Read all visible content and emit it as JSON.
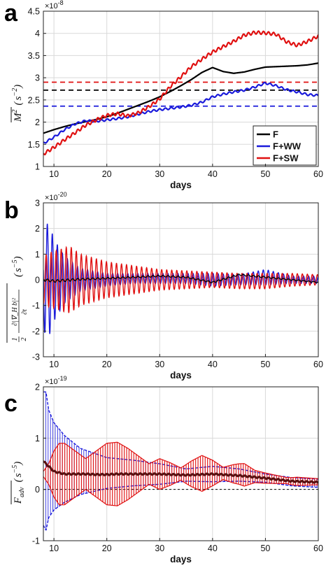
{
  "chart_data": [
    {
      "panel": "a",
      "type": "line",
      "xlabel": "days",
      "ylabel": "M² (s⁻²)",
      "ylabel_parts": {
        "var": "M",
        "sup": "2",
        "unit_open": "(",
        "unit_s": "s",
        "unit_exp": "−2",
        "unit_close": ")"
      },
      "multiplier": "×10",
      "multiplier_exp": "-8",
      "xlim": [
        8,
        60
      ],
      "ylim": [
        1,
        4.5
      ],
      "xticks": [
        "10",
        "20",
        "30",
        "40",
        "50",
        "60"
      ],
      "yticks": [
        "1",
        "1.5",
        "2",
        "2.5",
        "3",
        "3.5",
        "4",
        "4.5"
      ],
      "grid": true,
      "legend_position": "bottom-right",
      "legend": [
        "F",
        "F+WW",
        "F+SW"
      ],
      "series": [
        {
          "name": "F",
          "color": "#000000",
          "x": [
            8,
            10,
            12,
            14,
            16,
            18,
            20,
            22,
            24,
            26,
            28,
            30,
            32,
            34,
            36,
            38,
            40,
            42,
            44,
            46,
            48,
            50,
            52,
            54,
            56,
            58,
            60
          ],
          "y": [
            1.75,
            1.83,
            1.9,
            1.96,
            2.01,
            2.06,
            2.12,
            2.2,
            2.29,
            2.38,
            2.47,
            2.57,
            2.69,
            2.82,
            2.96,
            3.12,
            3.23,
            3.14,
            3.1,
            3.13,
            3.19,
            3.24,
            3.25,
            3.26,
            3.27,
            3.29,
            3.33
          ]
        },
        {
          "name": "F+WW",
          "color": "#1a1adb",
          "x": [
            8,
            10,
            12,
            14,
            16,
            18,
            20,
            22,
            24,
            26,
            28,
            30,
            32,
            34,
            36,
            38,
            40,
            42,
            44,
            46,
            48,
            50,
            52,
            54,
            56,
            58,
            60
          ],
          "y": [
            1.52,
            1.66,
            1.83,
            1.96,
            2.03,
            2.02,
            2.05,
            2.08,
            2.12,
            2.18,
            2.24,
            2.28,
            2.31,
            2.34,
            2.38,
            2.45,
            2.57,
            2.63,
            2.68,
            2.72,
            2.79,
            2.88,
            2.82,
            2.73,
            2.68,
            2.62,
            2.6
          ]
        },
        {
          "name": "F+SW",
          "color": "#e01010",
          "x": [
            8,
            10,
            12,
            14,
            16,
            18,
            20,
            22,
            24,
            26,
            28,
            30,
            32,
            34,
            36,
            38,
            40,
            42,
            44,
            46,
            48,
            50,
            52,
            54,
            56,
            58,
            60
          ],
          "y": [
            1.28,
            1.43,
            1.6,
            1.76,
            1.93,
            2.05,
            2.15,
            2.19,
            2.14,
            2.21,
            2.35,
            2.52,
            2.8,
            3.02,
            3.25,
            3.42,
            3.58,
            3.7,
            3.82,
            3.96,
            4.02,
            4.01,
            3.98,
            3.81,
            3.73,
            3.82,
            3.94
          ]
        }
      ],
      "reference_lines": [
        {
          "color": "#e01010",
          "y": 2.9
        },
        {
          "color": "#000000",
          "y": 2.72
        },
        {
          "color": "#1a1adb",
          "y": 2.36
        }
      ]
    },
    {
      "panel": "b",
      "type": "line",
      "xlabel": "days",
      "ylabel_parts": {
        "half": "1",
        "half_den": "2",
        "num": "∂|∇_H b|²",
        "den": "∂t",
        "unit_open": "(",
        "unit_s": "s",
        "unit_exp": "−5",
        "unit_close": ")"
      },
      "multiplier": "×10",
      "multiplier_exp": "-20",
      "xlim": [
        8,
        60
      ],
      "ylim": [
        -3,
        3
      ],
      "xticks": [
        "10",
        "20",
        "30",
        "40",
        "50",
        "60"
      ],
      "yticks": [
        "-3",
        "-2",
        "-1",
        "0",
        "1",
        "2",
        "3"
      ],
      "grid": true,
      "oscillation_period_days": 0.95,
      "series": [
        {
          "name": "F",
          "color": "#000000",
          "envelope_x": [
            8,
            10,
            12,
            15,
            20,
            25,
            30,
            35,
            40,
            45,
            50,
            55,
            60
          ],
          "envelope_y": [
            0.05,
            0.05,
            0.05,
            0.04,
            0.03,
            0.03,
            0.03,
            0.03,
            0.03,
            0.03,
            0.03,
            0.02,
            0.02
          ],
          "trend_x": [
            8,
            10,
            15,
            20,
            25,
            30,
            35,
            40,
            45,
            50,
            55,
            60
          ],
          "trend_y": [
            0,
            -0.05,
            0.02,
            0.06,
            0.1,
            0.15,
            0.1,
            -0.1,
            0.2,
            0.1,
            0,
            -0.1
          ]
        },
        {
          "name": "F+WW",
          "color": "#1a1adb",
          "envelope_x": [
            8,
            9,
            10,
            12,
            15,
            20,
            25,
            30,
            35,
            40,
            45,
            50,
            55,
            60
          ],
          "envelope_y": [
            2.0,
            2.25,
            1.6,
            0.9,
            0.45,
            0.25,
            0.2,
            0.2,
            0.2,
            0.25,
            0.2,
            0.3,
            0.15,
            0.15
          ],
          "trend_x": [
            8,
            10,
            15,
            20,
            25,
            30,
            35,
            40,
            45,
            50,
            55,
            60
          ],
          "trend_y": [
            0,
            0,
            0,
            0,
            0.05,
            0.05,
            0.05,
            0,
            0,
            0.1,
            0,
            0
          ]
        },
        {
          "name": "F+SW",
          "color": "#e01010",
          "envelope_x": [
            8,
            9,
            10,
            12,
            13,
            15,
            20,
            25,
            30,
            35,
            40,
            45,
            50,
            55,
            60
          ],
          "envelope_y": [
            0.9,
            1.05,
            1.1,
            1.25,
            1.3,
            1.0,
            0.7,
            0.55,
            0.4,
            0.35,
            0.3,
            0.3,
            0.3,
            0.25,
            0.2
          ],
          "trend_x": [
            8,
            10,
            15,
            20,
            25,
            30,
            35,
            40,
            45,
            50,
            55,
            60
          ],
          "trend_y": [
            0,
            0,
            0,
            0,
            0,
            0,
            0,
            0,
            -0.05,
            -0.05,
            0,
            0
          ]
        }
      ]
    },
    {
      "panel": "c",
      "type": "line",
      "xlabel": "days",
      "ylabel_parts": {
        "var": "F",
        "sub": "adv",
        "unit_open": "(",
        "unit_s": "s",
        "unit_exp": "−5",
        "unit_close": ")"
      },
      "multiplier": "×10",
      "multiplier_exp": "-19",
      "xlim": [
        8,
        60
      ],
      "ylim": [
        -1,
        2
      ],
      "xticks": [
        "10",
        "20",
        "30",
        "40",
        "50",
        "60"
      ],
      "yticks": [
        "-1",
        "0",
        "1",
        "2"
      ],
      "grid": true,
      "series": [
        {
          "name": "F",
          "color": "#000000",
          "x": [
            8,
            9,
            10,
            12,
            14,
            16,
            18,
            20,
            22,
            25,
            30,
            35,
            40,
            45,
            50,
            55,
            60
          ],
          "y": [
            0.55,
            0.45,
            0.35,
            0.3,
            0.3,
            0.3,
            0.29,
            0.29,
            0.3,
            0.3,
            0.3,
            0.28,
            0.3,
            0.27,
            0.22,
            0.16,
            0.14
          ]
        },
        {
          "name": "F+WW",
          "color": "#1a1adb",
          "mean_x": [
            8,
            8.5,
            9,
            10,
            12,
            15,
            20,
            25,
            30,
            35,
            40,
            45,
            50,
            55,
            60
          ],
          "mean_y": [
            0.6,
            0.55,
            0.5,
            0.45,
            0.4,
            0.35,
            0.32,
            0.32,
            0.3,
            0.28,
            0.3,
            0.28,
            0.22,
            0.15,
            0.12
          ],
          "envelope_x": [
            8,
            8.5,
            9,
            10,
            12,
            15,
            20,
            25,
            30,
            35,
            40,
            45,
            50,
            55,
            60
          ],
          "envelope_y": [
            1.3,
            1.35,
            1.05,
            0.85,
            0.65,
            0.45,
            0.3,
            0.25,
            0.2,
            0.12,
            0.15,
            0.12,
            0.08,
            0.08,
            0.08
          ]
        },
        {
          "name": "F+SW",
          "color": "#e01010",
          "mean_x": [
            8,
            10,
            15,
            20,
            25,
            30,
            35,
            40,
            45,
            50,
            55,
            60
          ],
          "mean_y": [
            0.3,
            0.3,
            0.3,
            0.3,
            0.3,
            0.3,
            0.3,
            0.32,
            0.3,
            0.22,
            0.16,
            0.15
          ],
          "envelope_x": [
            8,
            9,
            10,
            11,
            12,
            14,
            16,
            18,
            20,
            22,
            24,
            26,
            28,
            30,
            32,
            34,
            36,
            38,
            40,
            42,
            44,
            46,
            48,
            50,
            52,
            54,
            56,
            58,
            60
          ],
          "envelope_y": [
            0.05,
            0.2,
            0.45,
            0.6,
            0.6,
            0.45,
            0.3,
            0.45,
            0.6,
            0.62,
            0.5,
            0.35,
            0.2,
            0.3,
            0.22,
            0.12,
            0.25,
            0.35,
            0.25,
            0.12,
            0.18,
            0.22,
            0.12,
            0.1,
            0.08,
            0.06,
            0.08,
            0.07,
            0.06
          ]
        }
      ],
      "reference_lines": [
        {
          "color": "#000000",
          "y": 0
        }
      ]
    }
  ],
  "panel_letters": [
    "a",
    "b",
    "c"
  ],
  "legend_labels": [
    "F",
    "F+WW",
    "F+SW"
  ],
  "colors": {
    "F": "#000000",
    "F+WW": "#1a1adb",
    "F+SW": "#e01010"
  }
}
